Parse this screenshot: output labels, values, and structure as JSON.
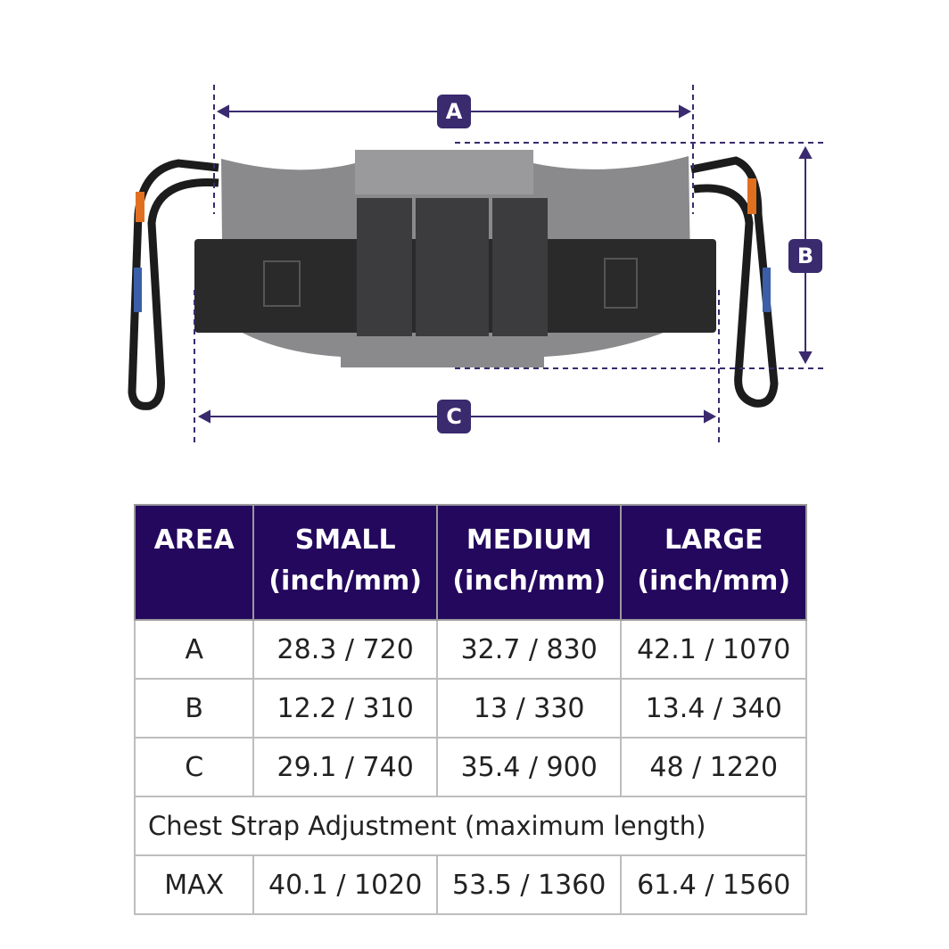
{
  "diagram": {
    "labels": [
      "A",
      "B",
      "C"
    ],
    "accent_color": "#3a2a6e"
  },
  "table": {
    "header_color": "#24085e",
    "headers": [
      {
        "title": "AREA",
        "unit": ""
      },
      {
        "title": "SMALL",
        "unit": "(inch/mm)"
      },
      {
        "title": "MEDIUM",
        "unit": "(inch/mm)"
      },
      {
        "title": "LARGE",
        "unit": "(inch/mm)"
      }
    ],
    "rows": [
      [
        "A",
        "28.3 / 720",
        "32.7 / 830",
        "42.1 / 1070"
      ],
      [
        "B",
        "12.2 / 310",
        "13 / 330",
        "13.4 / 340"
      ],
      [
        "C",
        "29.1 / 740",
        "35.4 / 900",
        "48 / 1220"
      ]
    ],
    "section_label": "Chest Strap Adjustment (maximum length)",
    "max_row": [
      "MAX",
      "40.1 / 1020",
      "53.5 / 1360",
      "61.4 / 1560"
    ]
  }
}
